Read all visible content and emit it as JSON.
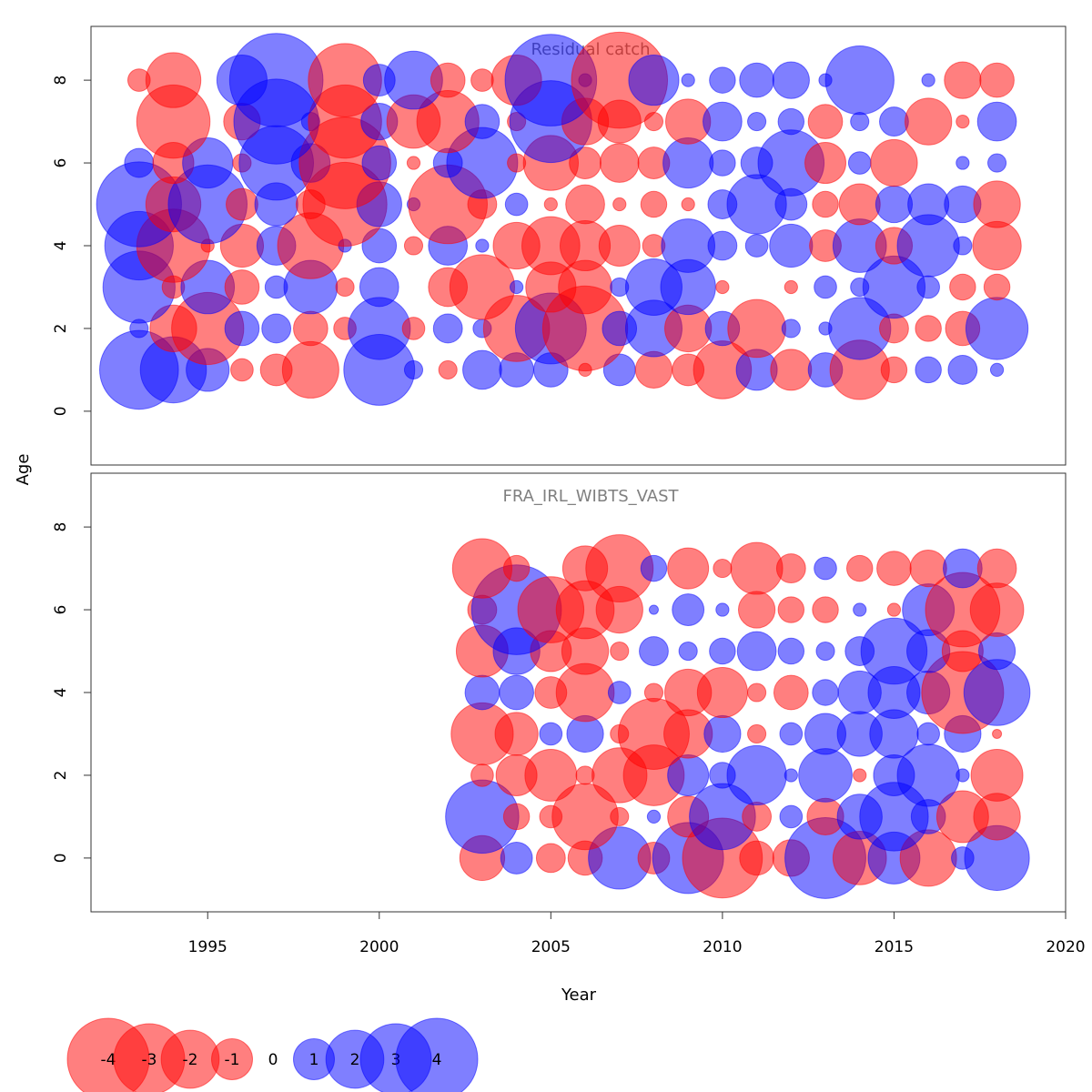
{
  "colors": {
    "negative": "#ff0000",
    "positive": "#0000ff",
    "frame": "#333333",
    "panel_title": "#808080",
    "text": "#000000"
  },
  "chart_data": {
    "type": "bubble",
    "xlabel": "Year",
    "ylabel": "Age",
    "xlim": [
      1991.6,
      2020
    ],
    "x_ticks": [
      1995,
      2000,
      2005,
      2010,
      2015,
      2020
    ],
    "x_tick_labels": [
      "1995",
      "2000",
      "2005",
      "2010",
      "2015",
      "2020"
    ],
    "bubble_scale_note": "sqrt-scaled by |residual|; red = negative, blue = positive",
    "panels": [
      {
        "title": "Residual catch",
        "ylim": [
          -1.3,
          9.3
        ],
        "y_ticks": [
          0,
          2,
          4,
          6,
          8
        ],
        "y_tick_labels": [
          "0",
          "2",
          "4",
          "6",
          "8"
        ],
        "years": [
          1993,
          1994,
          1995,
          1996,
          1997,
          1998,
          1999,
          2000,
          2001,
          2002,
          2003,
          2004,
          2005,
          2006,
          2007,
          2008,
          2009,
          2010,
          2011,
          2012,
          2013,
          2014,
          2015,
          2016,
          2017,
          2018
        ],
        "ages": [
          1,
          2,
          3,
          4,
          5,
          6,
          7,
          8
        ],
        "residuals": [
          [
            3.7,
            2.6,
            1.1,
            -0.3,
            -0.6,
            -1.9,
            0.0,
            3.0,
            0.2,
            -0.2,
            0.9,
            0.7,
            0.7,
            -0.1,
            0.6,
            -0.8,
            -0.6,
            -2.0,
            1.0,
            -1.0,
            0.7,
            -2.1,
            -0.4,
            0.4,
            0.5,
            0.1
          ],
          [
            0.2,
            -1.3,
            -3.1,
            0.7,
            0.5,
            -0.7,
            -0.3,
            2.3,
            -0.3,
            0.5,
            0.2,
            -2.6,
            3.0,
            -4.3,
            0.7,
            1.9,
            -1.3,
            0.7,
            -2.0,
            0.2,
            0.1,
            2.3,
            -0.5,
            -0.4,
            -0.7,
            2.3
          ],
          [
            3.1,
            -0.3,
            1.7,
            -0.7,
            0.3,
            1.7,
            -0.2,
            0.9,
            0.0,
            -0.9,
            -2.5,
            0.1,
            -1.5,
            -1.7,
            0.2,
            1.9,
            1.8,
            -0.1,
            0.0,
            -0.1,
            0.3,
            0.2,
            2.3,
            0.3,
            -0.4,
            -0.4
          ],
          [
            2.8,
            -3.2,
            -0.1,
            -1.1,
            0.9,
            -2.6,
            0.1,
            0.7,
            -0.2,
            0.9,
            0.1,
            -1.3,
            -2.0,
            -1.5,
            -1.0,
            -0.3,
            1.7,
            0.5,
            0.3,
            1.1,
            -0.6,
            1.7,
            -0.8,
            2.3,
            0.2,
            -1.4
          ],
          [
            4.3,
            -1.8,
            3.7,
            -0.6,
            1.1,
            -0.5,
            -4.2,
            1.2,
            0.1,
            -3.7,
            -0.5,
            0.3,
            -0.1,
            -0.9,
            -0.1,
            -0.4,
            -0.1,
            0.5,
            2.1,
            0.6,
            -0.4,
            -1.0,
            0.8,
            1.0,
            0.8,
            -1.3
          ],
          [
            0.5,
            -1.0,
            1.5,
            -0.2,
            3.3,
            0.9,
            -5.0,
            0.7,
            -0.1,
            0.5,
            3.0,
            -0.2,
            -1.8,
            -0.6,
            -0.9,
            -0.6,
            1.5,
            0.4,
            0.6,
            2.6,
            -1.0,
            0.3,
            -1.3,
            0.0,
            0.1,
            0.2
          ],
          [
            0.0,
            -3.2,
            0,
            -0.8,
            4.3,
            0.2,
            -3.2,
            0.8,
            -1.7,
            -2.3,
            0.7,
            -0.2,
            4.0,
            -1.3,
            -1.1,
            -0.2,
            -1.2,
            0.9,
            0.2,
            0.4,
            -0.7,
            0.2,
            0.5,
            -1.3,
            -0.1,
            0.9
          ],
          [
            -0.3,
            -1.8,
            0,
            1.5,
            5.2,
            0.0,
            -3.2,
            0.6,
            2.0,
            -0.7,
            -0.3,
            -1.5,
            5.0,
            0.1,
            -5.5,
            1.5,
            0.1,
            0.4,
            0.7,
            0.8,
            0.1,
            2.8,
            0.0,
            0.1,
            -0.8,
            -0.7
          ]
        ]
      },
      {
        "title": "FRA_IRL_WIBTS_VAST",
        "ylim": [
          -1.3,
          9.3
        ],
        "y_ticks": [
          0,
          2,
          4,
          6,
          8
        ],
        "y_tick_labels": [
          "0",
          "2",
          "4",
          "6",
          "8"
        ],
        "years": [
          2003,
          2004,
          2005,
          2006,
          2007,
          2008,
          2009,
          2010,
          2011,
          2012,
          2013,
          2014,
          2015,
          2016,
          2017,
          2018
        ],
        "ages": [
          0,
          1,
          2,
          3,
          4,
          5,
          6,
          7
        ],
        "residuals": [
          [
            -1.2,
            0.6,
            -0.5,
            -0.7,
            2.3,
            -0.6,
            3.0,
            -3.8,
            -0.7,
            -0.8,
            3.9,
            -1.7,
            1.6,
            -1.9,
            0.3,
            2.5
          ],
          [
            3.2,
            -0.4,
            -0.3,
            -2.6,
            -0.2,
            0.1,
            -1.0,
            2.6,
            -0.5,
            0.3,
            -0.8,
            1.2,
            2.8,
            0.7,
            -1.6,
            -1.3
          ],
          [
            -0.3,
            -1.0,
            -1.6,
            -0.2,
            -1.8,
            -2.2,
            1.0,
            0.4,
            2.1,
            0.1,
            1.7,
            -0.1,
            1.0,
            2.3,
            0.1,
            -1.6
          ],
          [
            -2.3,
            -1.1,
            0.3,
            0.8,
            -0.2,
            -3.0,
            -1.4,
            0.8,
            -0.2,
            0.3,
            1.0,
            1.2,
            1.4,
            0.3,
            0.8,
            -0.05
          ],
          [
            0.7,
            0.7,
            -0.6,
            -2.0,
            0.3,
            -0.2,
            -1.3,
            -1.5,
            -0.2,
            -0.7,
            0.4,
            1.1,
            1.6,
            1.1,
            -4.0,
            2.6
          ],
          [
            -1.6,
            1.3,
            -1.0,
            -1.3,
            -0.2,
            0.5,
            0.2,
            0.4,
            0.9,
            0.4,
            0.2,
            0.5,
            2.6,
            1.1,
            -1.0,
            0.8
          ],
          [
            -0.5,
            4.8,
            -2.6,
            -2.0,
            -1.3,
            0.05,
            0.6,
            0.1,
            -0.8,
            -0.4,
            -0.4,
            0.1,
            -0.1,
            1.6,
            -3.3,
            -1.7
          ],
          [
            -2.1,
            -0.4,
            0,
            -1.2,
            -2.7,
            0.4,
            -1.0,
            -0.2,
            -1.6,
            -0.5,
            0.3,
            -0.4,
            -0.7,
            -0.8,
            0.9,
            -0.9
          ]
        ]
      }
    ],
    "legend": {
      "values": [
        -4,
        -3,
        -2,
        -1,
        0,
        1,
        2,
        3,
        4
      ],
      "labels": [
        "-4",
        "-3",
        "-2",
        "-1",
        "0",
        "1",
        "2",
        "3",
        "4"
      ],
      "placement": "bottom-left"
    }
  }
}
